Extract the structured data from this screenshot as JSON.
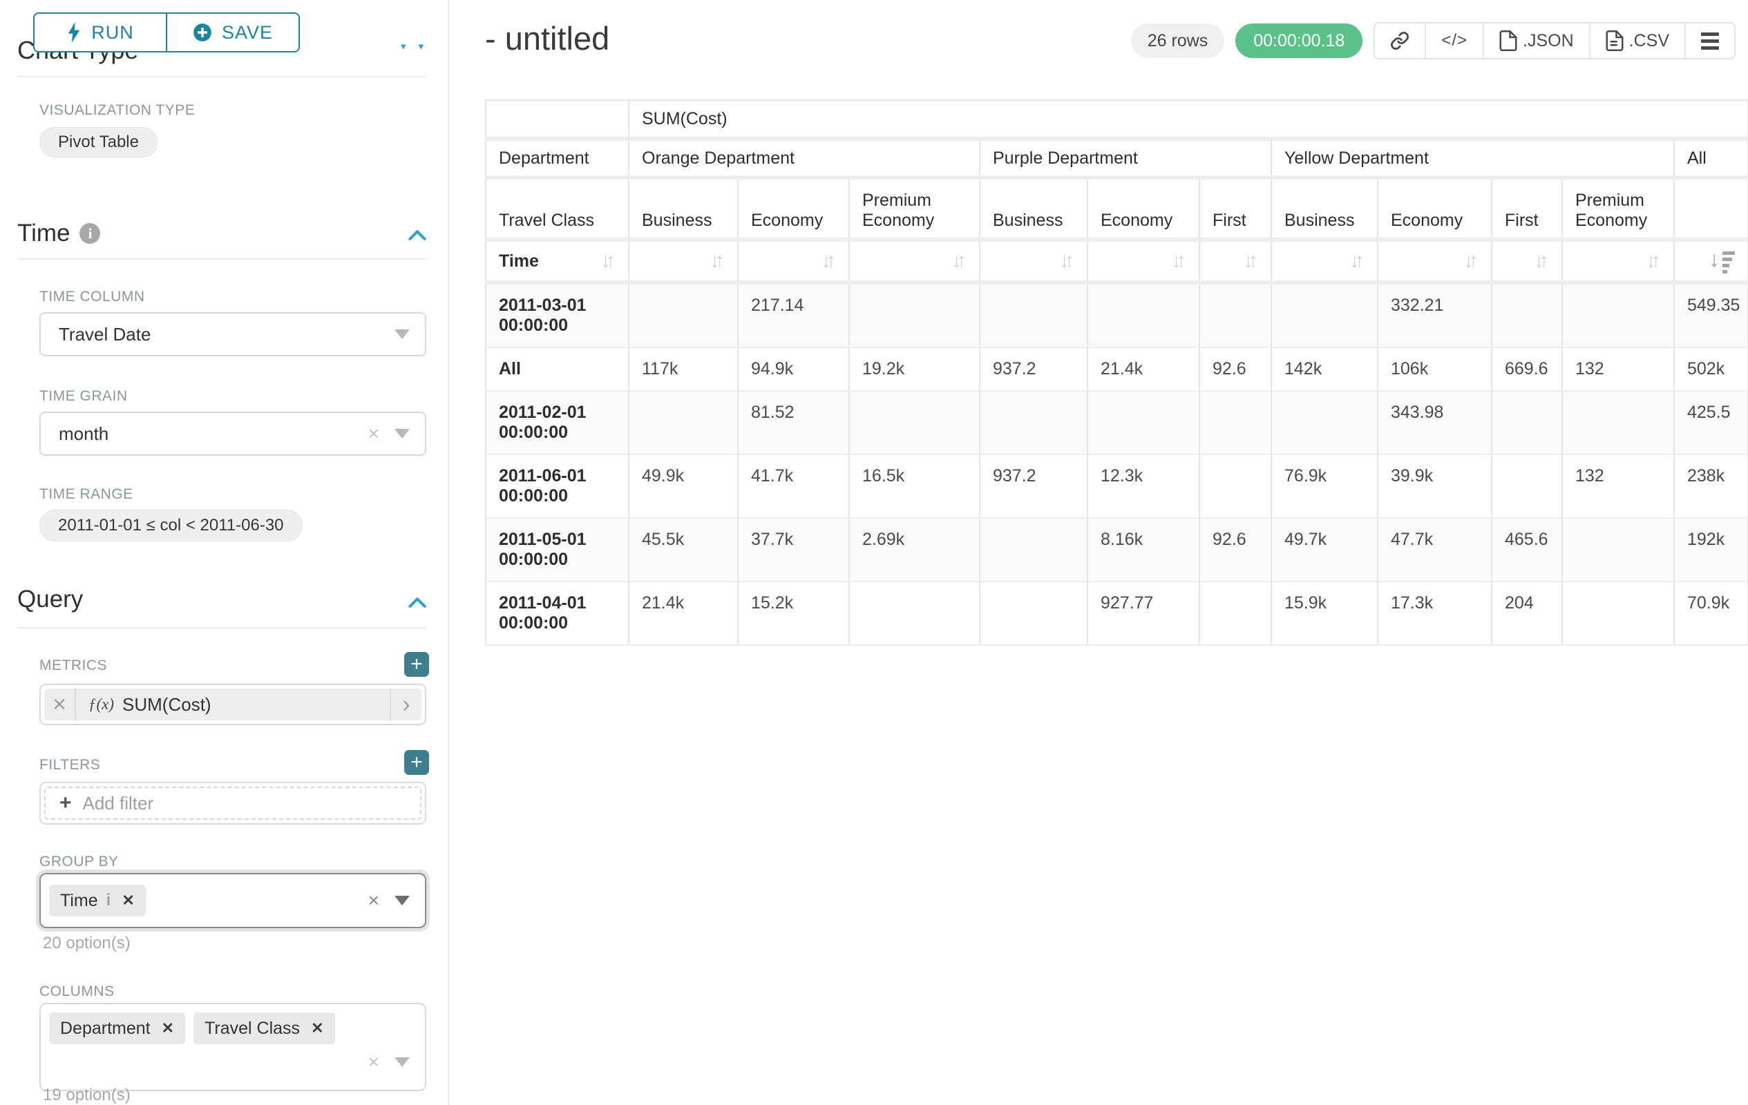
{
  "sidebar": {
    "run_label": "RUN",
    "save_label": "SAVE",
    "chart_type_heading": "Chart Type",
    "viz_label": "VISUALIZATION TYPE",
    "viz_value": "Pivot Table",
    "time": {
      "title": "Time",
      "col_label": "TIME COLUMN",
      "col_value": "Travel Date",
      "grain_label": "TIME GRAIN",
      "grain_value": "month",
      "range_label": "TIME RANGE",
      "range_value": "2011-01-01 ≤ col < 2011-06-30"
    },
    "query": {
      "title": "Query",
      "metrics_label": "METRICS",
      "metric_fx": "ƒ(x)",
      "metric_value": "SUM(Cost)",
      "filters_label": "FILTERS",
      "add_filter": "Add filter",
      "groupby_label": "GROUP BY",
      "groupby_chip": "Time",
      "groupby_options": "20 option(s)",
      "columns_label": "COLUMNS",
      "columns_chips": [
        "Department",
        "Travel Class"
      ],
      "columns_options": "19 option(s)"
    }
  },
  "header": {
    "title": "- untitled",
    "rows_badge": "26 rows",
    "timer": "00:00:00.18",
    "code_glyph": "</>",
    "json_label": ".JSON",
    "csv_label": ".CSV"
  },
  "chart_data": {
    "type": "table",
    "metric_header": "SUM(Cost)",
    "col_dimension_label": "Department",
    "col_subdimension_label": "Travel Class",
    "row_dimension_label": "Time",
    "column_groups": [
      {
        "label": "Orange Department",
        "classes": [
          "Business",
          "Economy",
          "Premium Economy"
        ]
      },
      {
        "label": "Purple Department",
        "classes": [
          "Business",
          "Economy",
          "First"
        ]
      },
      {
        "label": "Yellow Department",
        "classes": [
          "Business",
          "Economy",
          "First",
          "Premium Economy"
        ]
      },
      {
        "label": "All",
        "classes": [
          ""
        ]
      }
    ],
    "rows": [
      {
        "label": "2011-03-01 00:00:00",
        "values": [
          "",
          "217.14",
          "",
          "",
          "",
          "",
          "",
          "332.21",
          "",
          "",
          "549.35"
        ]
      },
      {
        "label": "All",
        "values": [
          "117k",
          "94.9k",
          "19.2k",
          "937.2",
          "21.4k",
          "92.6",
          "142k",
          "106k",
          "669.6",
          "132",
          "502k"
        ]
      },
      {
        "label": "2011-02-01 00:00:00",
        "values": [
          "",
          "81.52",
          "",
          "",
          "",
          "",
          "",
          "343.98",
          "",
          "",
          "425.5"
        ]
      },
      {
        "label": "2011-06-01 00:00:00",
        "values": [
          "49.9k",
          "41.7k",
          "16.5k",
          "937.2",
          "12.3k",
          "",
          "76.9k",
          "39.9k",
          "",
          "132",
          "238k"
        ]
      },
      {
        "label": "2011-05-01 00:00:00",
        "values": [
          "45.5k",
          "37.7k",
          "2.69k",
          "",
          "8.16k",
          "92.6",
          "49.7k",
          "47.7k",
          "465.6",
          "",
          "192k"
        ]
      },
      {
        "label": "2011-04-01 00:00:00",
        "values": [
          "21.4k",
          "15.2k",
          "",
          "",
          "927.77",
          "",
          "15.9k",
          "17.3k",
          "204",
          "",
          "70.9k"
        ]
      }
    ]
  }
}
